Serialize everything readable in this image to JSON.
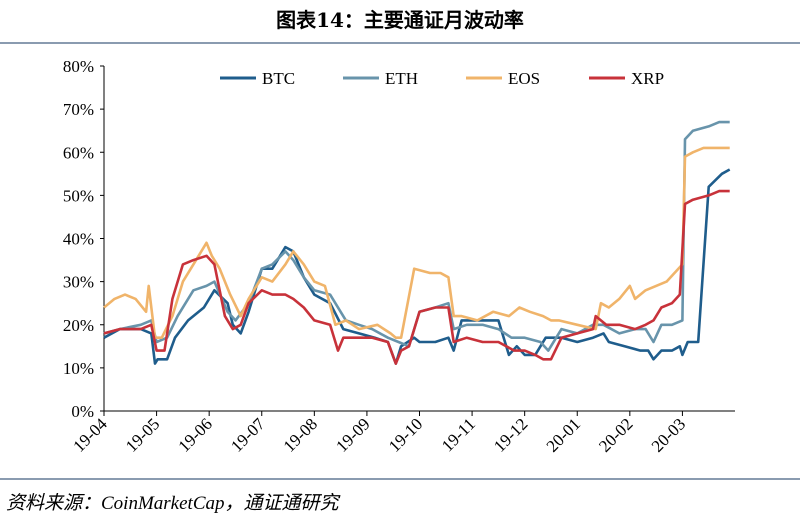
{
  "title": "图表14：主要通证月波动率",
  "source": "资料来源：CoinMarketCap，通证通研究",
  "chart_data": {
    "type": "line",
    "ylim": [
      0,
      80
    ],
    "y_ticks": [
      0,
      10,
      20,
      30,
      40,
      50,
      60,
      70,
      80
    ],
    "y_tick_labels": [
      "0%",
      "10%",
      "20%",
      "30%",
      "40%",
      "50%",
      "60%",
      "70%",
      "80%"
    ],
    "x_tick_labels": [
      "19-04",
      "19-05",
      "19-06",
      "19-07",
      "19-08",
      "19-09",
      "19-10",
      "19-11",
      "19-12",
      "20-01",
      "20-02",
      "20-03"
    ],
    "x_tick_months": [
      0,
      1,
      2,
      3,
      4,
      5,
      6,
      7,
      8,
      9,
      10,
      11
    ],
    "xlim": [
      0,
      12
    ],
    "legend_position": "top",
    "series": [
      {
        "name": "BTC",
        "color": "#1f5d8c",
        "x": [
          0,
          0.3,
          0.7,
          0.9,
          0.97,
          1.02,
          1.2,
          1.35,
          1.6,
          1.9,
          2.1,
          2.35,
          2.45,
          2.6,
          2.75,
          3.0,
          3.2,
          3.45,
          3.6,
          3.8,
          4.0,
          4.3,
          4.55,
          4.85,
          5.15,
          5.4,
          5.55,
          5.65,
          5.9,
          6.0,
          6.3,
          6.55,
          6.65,
          6.8,
          7.0,
          7.5,
          7.7,
          7.85,
          8.0,
          8.2,
          8.4,
          8.7,
          9.0,
          9.3,
          9.5,
          9.6,
          9.9,
          10.2,
          10.35,
          10.45,
          10.6,
          10.8,
          10.95,
          11.0,
          11.1,
          11.3,
          11.5,
          11.75,
          11.9
        ],
        "y": [
          17,
          19,
          19,
          18,
          11,
          12,
          12,
          17,
          21,
          24,
          28,
          25,
          20,
          18,
          23,
          33,
          33,
          38,
          37,
          31,
          27,
          25,
          19,
          18,
          17,
          16,
          11,
          15,
          17,
          16,
          16,
          17,
          14,
          21,
          21,
          21,
          13,
          15,
          13,
          13,
          17,
          17,
          16,
          17,
          18,
          16,
          15,
          14,
          14,
          12,
          14,
          14,
          15,
          13,
          16,
          16,
          52,
          55,
          56
        ]
      },
      {
        "name": "ETH",
        "color": "#6894ab",
        "x": [
          0,
          0.3,
          0.7,
          0.9,
          1.0,
          1.2,
          1.4,
          1.7,
          1.95,
          2.1,
          2.35,
          2.5,
          2.75,
          3.0,
          3.2,
          3.45,
          3.6,
          3.8,
          4.0,
          4.3,
          4.6,
          4.85,
          5.1,
          5.4,
          5.6,
          5.8,
          6.0,
          6.3,
          6.55,
          6.65,
          6.9,
          7.2,
          7.5,
          7.75,
          8.0,
          8.3,
          8.45,
          8.7,
          9.0,
          9.3,
          9.5,
          9.8,
          10.1,
          10.3,
          10.45,
          10.6,
          10.8,
          11.0,
          11.05,
          11.2,
          11.5,
          11.7,
          11.9
        ],
        "y": [
          18,
          19,
          20,
          21,
          16,
          17,
          22,
          28,
          29,
          30,
          23,
          21,
          25,
          33,
          34,
          37,
          35,
          31,
          28,
          27,
          21,
          20,
          19,
          17,
          16,
          15,
          23,
          24,
          25,
          19,
          20,
          20,
          19,
          17,
          17,
          16,
          14,
          19,
          18,
          20,
          20,
          18,
          19,
          19,
          16,
          20,
          20,
          21,
          63,
          65,
          66,
          67,
          67
        ]
      },
      {
        "name": "EOS",
        "color": "#f0b46a",
        "x": [
          0,
          0.2,
          0.4,
          0.6,
          0.8,
          0.85,
          0.97,
          1.1,
          1.3,
          1.5,
          1.7,
          1.95,
          2.05,
          2.2,
          2.4,
          2.6,
          2.75,
          3.0,
          3.2,
          3.45,
          3.6,
          3.8,
          4.0,
          4.2,
          4.4,
          4.6,
          4.85,
          5.2,
          5.45,
          5.55,
          5.65,
          5.9,
          6.2,
          6.4,
          6.55,
          6.65,
          6.8,
          7.1,
          7.4,
          7.7,
          7.9,
          8.1,
          8.35,
          8.5,
          8.65,
          9.0,
          9.35,
          9.45,
          9.6,
          9.8,
          10.0,
          10.1,
          10.3,
          10.5,
          10.7,
          11.0,
          11.05,
          11.2,
          11.4,
          11.6,
          11.9
        ],
        "y": [
          24,
          26,
          27,
          26,
          23,
          29,
          17,
          17,
          22,
          30,
          34,
          39,
          36,
          33,
          27,
          22,
          26,
          31,
          30,
          34,
          37,
          34,
          30,
          29,
          20,
          21,
          19,
          20,
          18,
          17,
          17,
          33,
          32,
          32,
          31,
          22,
          22,
          21,
          23,
          22,
          24,
          23,
          22,
          21,
          21,
          20,
          19,
          25,
          24,
          26,
          29,
          26,
          28,
          29,
          30,
          34,
          59,
          60,
          61,
          61,
          61
        ]
      },
      {
        "name": "XRP",
        "color": "#c8323a",
        "x": [
          0,
          0.3,
          0.7,
          0.9,
          1.0,
          1.15,
          1.3,
          1.5,
          1.7,
          1.95,
          2.1,
          2.3,
          2.45,
          2.6,
          2.75,
          3.0,
          3.2,
          3.45,
          3.6,
          3.8,
          4.0,
          4.3,
          4.45,
          4.55,
          4.85,
          5.1,
          5.4,
          5.55,
          5.65,
          5.8,
          6.0,
          6.3,
          6.55,
          6.65,
          6.9,
          7.2,
          7.5,
          7.8,
          8.0,
          8.2,
          8.35,
          8.5,
          8.7,
          9.0,
          9.3,
          9.35,
          9.55,
          9.8,
          10.1,
          10.3,
          10.45,
          10.6,
          10.8,
          10.95,
          11.05,
          11.2,
          11.5,
          11.7,
          11.9
        ],
        "y": [
          18,
          19,
          19,
          20,
          14,
          14,
          26,
          34,
          35,
          36,
          34,
          22,
          19,
          20,
          25,
          28,
          27,
          27,
          26,
          24,
          21,
          20,
          14,
          17,
          17,
          17,
          16,
          11,
          14,
          15,
          23,
          24,
          24,
          16,
          17,
          16,
          16,
          14,
          14,
          13,
          12,
          12,
          17,
          18,
          19,
          22,
          20,
          20,
          19,
          20,
          21,
          24,
          25,
          27,
          48,
          49,
          50,
          51,
          51
        ]
      }
    ]
  }
}
